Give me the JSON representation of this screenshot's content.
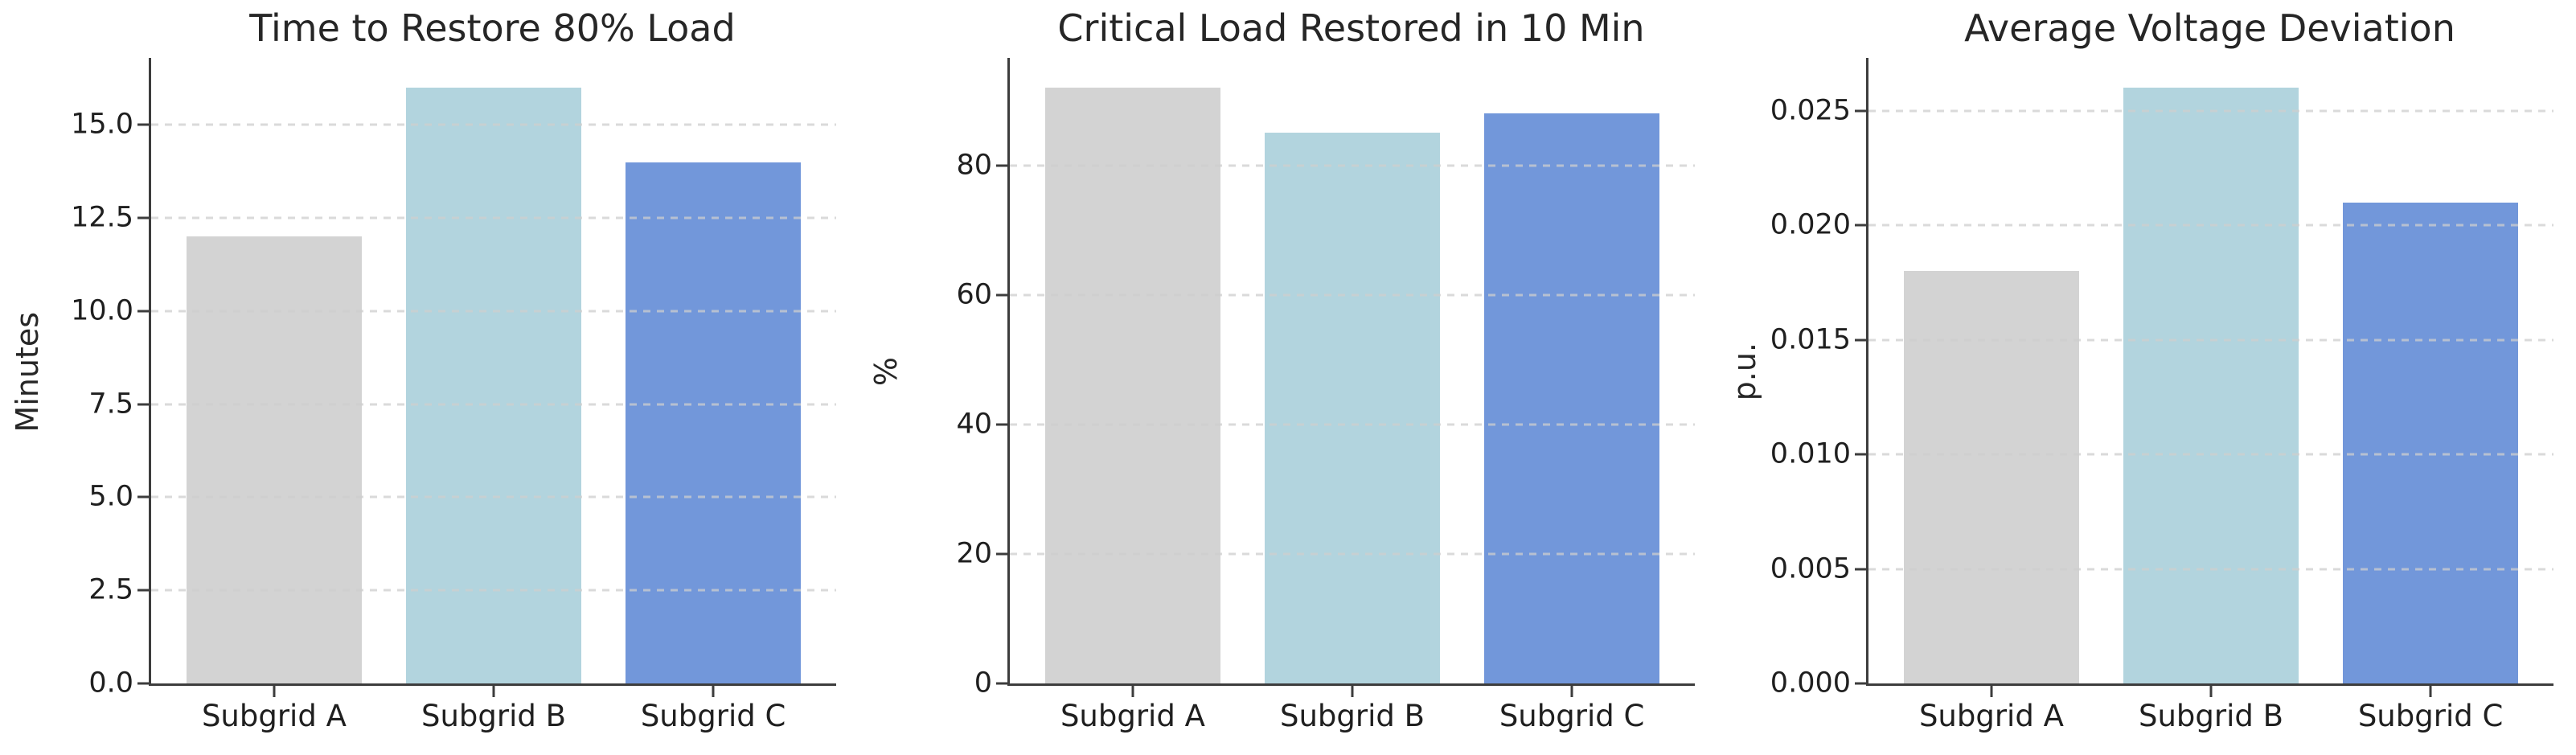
{
  "figure": {
    "background": "#ffffff",
    "text_color": "#262626",
    "spine_color": "#3d3d3d",
    "grid_color": "#cecece",
    "grid_style": "dashed-horizontal"
  },
  "chart_data": [
    {
      "type": "bar",
      "title": "Time to Restore 80% Load",
      "ylabel": "Minutes",
      "xlabel": "",
      "categories": [
        "Subgrid A",
        "Subgrid B",
        "Subgrid C"
      ],
      "values": [
        12,
        16,
        14
      ],
      "bar_colors": [
        "#d3d3d3",
        "#b2d4de",
        "#7297da"
      ],
      "ylim": [
        0,
        16.8
      ],
      "yticks": [
        0.0,
        2.5,
        5.0,
        7.5,
        10.0,
        12.5,
        15.0
      ],
      "ytick_labels": [
        "0.0",
        "2.5",
        "5.0",
        "7.5",
        "10.0",
        "12.5",
        "15.0"
      ],
      "grid": true,
      "legend": "none"
    },
    {
      "type": "bar",
      "title": "Critical Load Restored in 10 Min",
      "ylabel": "%",
      "xlabel": "",
      "categories": [
        "Subgrid A",
        "Subgrid B",
        "Subgrid C"
      ],
      "values": [
        92,
        85,
        88
      ],
      "bar_colors": [
        "#d3d3d3",
        "#b2d4de",
        "#7297da"
      ],
      "ylim": [
        0,
        96.6
      ],
      "yticks": [
        0,
        20,
        40,
        60,
        80
      ],
      "ytick_labels": [
        "0",
        "20",
        "40",
        "60",
        "80"
      ],
      "grid": true,
      "legend": "none"
    },
    {
      "type": "bar",
      "title": "Average Voltage Deviation",
      "ylabel": "p.u.",
      "xlabel": "",
      "categories": [
        "Subgrid A",
        "Subgrid B",
        "Subgrid C"
      ],
      "values": [
        0.018,
        0.026,
        0.021
      ],
      "bar_colors": [
        "#d3d3d3",
        "#b2d4de",
        "#7297da"
      ],
      "ylim": [
        0,
        0.0273
      ],
      "yticks": [
        0.0,
        0.005,
        0.01,
        0.015,
        0.02,
        0.025
      ],
      "ytick_labels": [
        "0.000",
        "0.005",
        "0.010",
        "0.015",
        "0.020",
        "0.025"
      ],
      "grid": true,
      "legend": "none"
    }
  ]
}
